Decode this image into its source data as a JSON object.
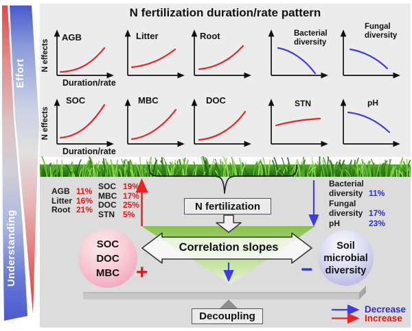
{
  "sidebar": {
    "effort": "Effort",
    "understanding": "Understanding"
  },
  "header": {
    "title": "N fertilization duration/rate pattern"
  },
  "miniplots": {
    "y_axis_label": "N effects",
    "x_axis_label": "Duration/rate",
    "row1": [
      {
        "label": "AGB",
        "trend": "increase"
      },
      {
        "label": "Litter",
        "trend": "increase"
      },
      {
        "label": "Root",
        "trend": "increase"
      },
      {
        "label": "Bacterial diversity",
        "trend": "decrease"
      },
      {
        "label": "Fungal diversity",
        "trend": "decrease"
      }
    ],
    "row2": [
      {
        "label": "SOC",
        "trend": "increase"
      },
      {
        "label": "MBC",
        "trend": "increase"
      },
      {
        "label": "DOC",
        "trend": "increase"
      },
      {
        "label": "STN",
        "trend": "increase"
      },
      {
        "label": "pH",
        "trend": "decrease"
      }
    ]
  },
  "flow": {
    "n_fertilization": "N fertilization",
    "correlation_slopes": "Correlation slopes",
    "decoupling": "Decoupling",
    "plus": "+",
    "minus": "−"
  },
  "stats": {
    "left_col1": [
      {
        "label": "AGB",
        "value": "11%"
      },
      {
        "label": "Litter",
        "value": "16%"
      },
      {
        "label": "Root",
        "value": "21%"
      }
    ],
    "left_col2": [
      {
        "label": "SOC",
        "value": "19%"
      },
      {
        "label": "MBC",
        "value": "17%"
      },
      {
        "label": "DOC",
        "value": "25%"
      },
      {
        "label": "STN",
        "value": "5%"
      }
    ],
    "right": [
      {
        "label": "Bacterial diversity",
        "value": "11%"
      },
      {
        "label": "Fungal diversity",
        "value": "17%"
      },
      {
        "label": "pH",
        "value": "23%"
      }
    ]
  },
  "circles": {
    "pink": [
      "SOC",
      "DOC",
      "MBC"
    ],
    "lavender": [
      "Soil",
      "microbial",
      "diversity"
    ]
  },
  "legend": [
    {
      "label": "Decrease",
      "color": "#2b2bea"
    },
    {
      "label": "Increase",
      "color": "#ee1111"
    }
  ],
  "colors": {
    "increase_curve": "#ee2222",
    "decrease_curve": "#3b3bea",
    "green_triangle": "#8cc24e",
    "panel_top": "#ececec",
    "panel_bottom": "#dcdcdc"
  }
}
